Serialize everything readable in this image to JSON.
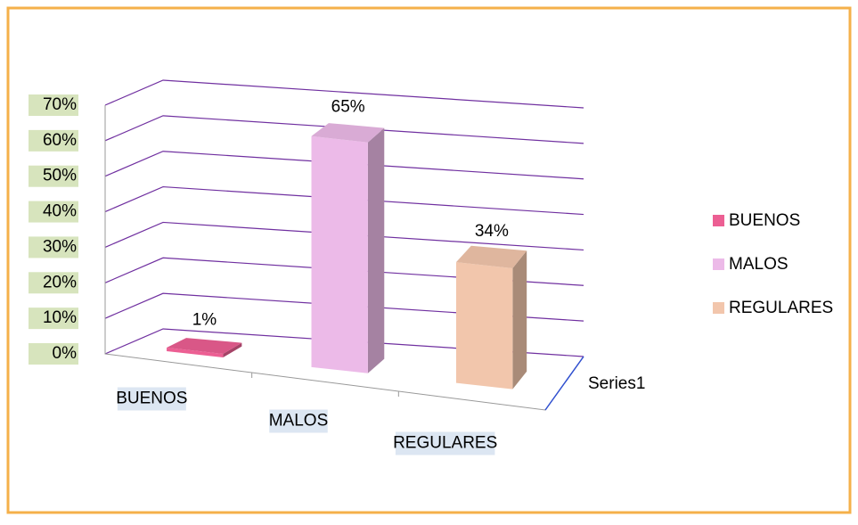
{
  "chart_data": {
    "type": "bar3d",
    "categories": [
      "BUENOS",
      "MALOS",
      "REGULARES"
    ],
    "colors": [
      "#ec5f93",
      "#ecbae8",
      "#f2c6ac"
    ],
    "series": [
      {
        "name": "Series1",
        "values": [
          1,
          65,
          34
        ],
        "value_labels": [
          "1%",
          "65%",
          "34%"
        ]
      }
    ],
    "ylim": [
      0,
      70
    ],
    "yticks": [
      {
        "value": 0,
        "label": "0%"
      },
      {
        "value": 10,
        "label": "10%"
      },
      {
        "value": 20,
        "label": "20%"
      },
      {
        "value": 30,
        "label": "30%"
      },
      {
        "value": 40,
        "label": "40%"
      },
      {
        "value": 50,
        "label": "50%"
      },
      {
        "value": 60,
        "label": "60%"
      },
      {
        "value": 70,
        "label": "70%"
      }
    ],
    "grid": true,
    "grid_color": "#7030a0",
    "legend": "right"
  }
}
